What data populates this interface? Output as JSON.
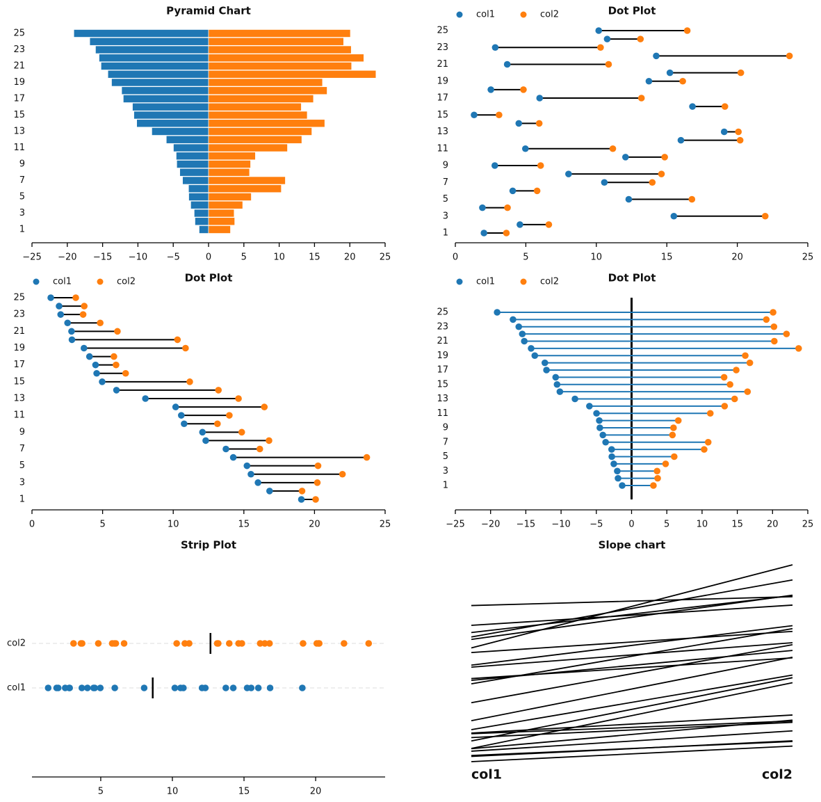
{
  "chart_data": {
    "dataset": {
      "index": [
        1,
        2,
        3,
        4,
        5,
        6,
        7,
        8,
        9,
        10,
        11,
        12,
        13,
        14,
        15,
        16,
        17,
        18,
        19,
        20,
        21,
        22,
        23,
        24,
        25
      ],
      "col1": [
        2.03,
        4.58,
        15.5,
        1.92,
        12.3,
        4.07,
        10.57,
        8.03,
        2.8,
        12.07,
        4.97,
        16.0,
        19.07,
        4.5,
        1.33,
        16.82,
        5.98,
        2.52,
        13.73,
        15.22,
        3.68,
        14.25,
        2.83,
        10.77,
        10.17
      ],
      "col2": [
        3.62,
        6.63,
        21.98,
        3.7,
        16.78,
        5.8,
        13.97,
        14.62,
        6.05,
        14.85,
        11.17,
        20.2,
        20.08,
        5.95,
        3.1,
        19.12,
        13.2,
        4.83,
        16.13,
        20.25,
        10.87,
        23.7,
        10.3,
        13.13,
        16.45
      ]
    },
    "colors": {
      "col1": "#1f77b4",
      "col2": "#ff7f0e"
    },
    "charts": [
      {
        "type": "bar",
        "title": "Pyramid Chart",
        "sort": "col1 ascending",
        "xlim": [
          -25,
          25
        ],
        "xticks": [
          -25,
          -20,
          -15,
          -10,
          -5,
          0,
          5,
          10,
          15,
          20,
          25
        ],
        "xticklabels": [
          "−25",
          "−20",
          "−15",
          "−10",
          "−5",
          "0",
          "5",
          "10",
          "15",
          "20",
          "25"
        ],
        "yticks": [
          1,
          3,
          5,
          7,
          9,
          11,
          13,
          15,
          17,
          19,
          21,
          23,
          25
        ],
        "yticklabels": [
          "1",
          "3",
          "5",
          "7",
          "9",
          "11",
          "13",
          "15",
          "17",
          "19",
          "21",
          "23",
          "25"
        ]
      },
      {
        "type": "dot",
        "title": "Dot Plot",
        "sort": "none",
        "legend": [
          "col1",
          "col2"
        ],
        "legend_position": "top-left",
        "xlim": [
          0,
          25
        ],
        "xticks": [
          0,
          5,
          10,
          15,
          20,
          25
        ],
        "xticklabels": [
          "0",
          "5",
          "10",
          "15",
          "20",
          "25"
        ],
        "yticks": [
          1,
          3,
          5,
          7,
          9,
          11,
          13,
          15,
          17,
          19,
          21,
          23,
          25
        ],
        "yticklabels": [
          "1",
          "3",
          "5",
          "7",
          "9",
          "11",
          "13",
          "15",
          "17",
          "19",
          "21",
          "23",
          "25"
        ]
      },
      {
        "type": "dot",
        "title": "Dot Plot",
        "sort": "col1 descending",
        "legend": [
          "col1",
          "col2"
        ],
        "legend_position": "top-left",
        "xlim": [
          0,
          25
        ],
        "xticks": [
          0,
          5,
          10,
          15,
          20,
          25
        ],
        "xticklabels": [
          "0",
          "5",
          "10",
          "15",
          "20",
          "25"
        ],
        "yticks": [
          1,
          3,
          5,
          7,
          9,
          11,
          13,
          15,
          17,
          19,
          21,
          23,
          25
        ],
        "yticklabels": [
          "1",
          "3",
          "5",
          "7",
          "9",
          "11",
          "13",
          "15",
          "17",
          "19",
          "21",
          "23",
          "25"
        ]
      },
      {
        "type": "dot",
        "title": "Dot Plot",
        "sort": "col1 ascending",
        "col1_sign": -1,
        "legend": [
          "col1",
          "col2"
        ],
        "legend_position": "top-left",
        "xlim": [
          -25,
          25
        ],
        "xticks": [
          -25,
          -20,
          -15,
          -10,
          -5,
          0,
          5,
          10,
          15,
          20,
          25
        ],
        "xticklabels": [
          "−25",
          "−20",
          "−15",
          "−10",
          "−5",
          "0",
          "5",
          "10",
          "15",
          "20",
          "25"
        ],
        "yticks": [
          1,
          3,
          5,
          7,
          9,
          11,
          13,
          15,
          17,
          19,
          21,
          23,
          25
        ],
        "yticklabels": [
          "1",
          "3",
          "5",
          "7",
          "9",
          "11",
          "13",
          "15",
          "17",
          "19",
          "21",
          "23",
          "25"
        ]
      },
      {
        "type": "scatter",
        "title": "Strip Plot",
        "xlim": [
          0.2,
          24.85
        ],
        "xticks": [
          5,
          10,
          15,
          20
        ],
        "xticklabels": [
          "5",
          "10",
          "15",
          "20"
        ],
        "yticklabels": [
          "col2",
          "col1"
        ],
        "mean_markers": true
      },
      {
        "type": "line",
        "title": "Slope chart",
        "ylim": [
          1.33,
          23.7
        ],
        "xticklabels": [
          "col1",
          "col2"
        ]
      }
    ]
  }
}
